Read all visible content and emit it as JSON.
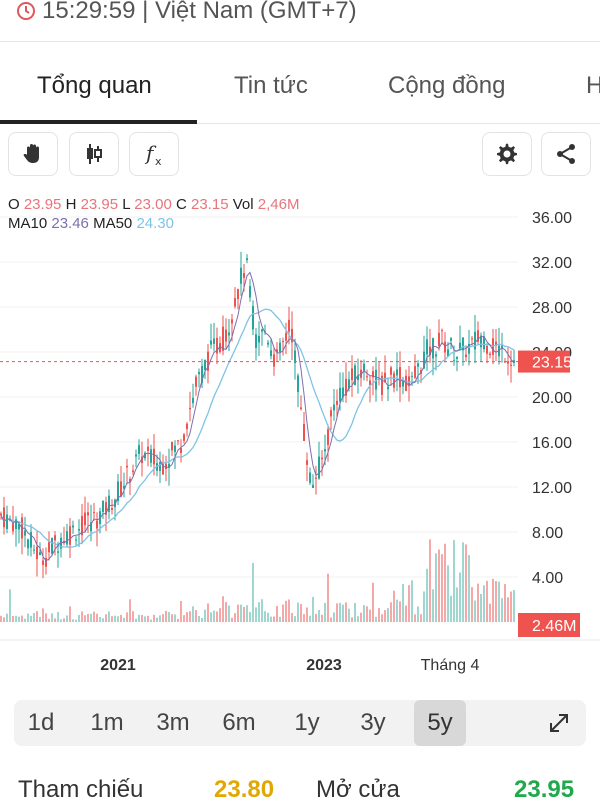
{
  "header": {
    "time_text": "15:29:59 | Việt Nam (GMT+7)"
  },
  "tabs": [
    {
      "label": "Tổng quan",
      "active": true
    },
    {
      "label": "Tin tức",
      "active": false
    },
    {
      "label": "Cộng đồng",
      "active": false
    },
    {
      "label": "H",
      "active": false
    }
  ],
  "toolbar": {
    "icons": [
      "hand-icon",
      "candlestick-icon",
      "function-icon",
      "gear-icon",
      "share-icon"
    ]
  },
  "legend": {
    "o_label": "O",
    "o_value": "23.95",
    "h_label": "H",
    "h_value": "23.95",
    "l_label": "L",
    "l_value": "23.00",
    "c_label": "C",
    "c_value": "23.15",
    "vol_label": "Vol",
    "vol_value": "2,46M",
    "ma10_label": "MA10",
    "ma10_value": "23.46",
    "ma50_label": "MA50",
    "ma50_value": "24.30"
  },
  "chart_data": {
    "type": "candlestick",
    "y_ticks": [
      "36.00",
      "32.00",
      "28.00",
      "24.00",
      "20.00",
      "16.00",
      "12.00",
      "8.00",
      "4.00"
    ],
    "ylim": [
      0,
      38
    ],
    "x_ticks": [
      "2021",
      "2023",
      "Tháng 4"
    ],
    "current_price": "23.15",
    "current_volume": "2.46M",
    "price_path": [
      [
        0,
        9.5
      ],
      [
        20,
        8.5
      ],
      [
        40,
        5.5
      ],
      [
        60,
        7.5
      ],
      [
        80,
        8.5
      ],
      [
        100,
        9.5
      ],
      [
        120,
        12.0
      ],
      [
        140,
        15.0
      ],
      [
        160,
        14.0
      ],
      [
        180,
        16.0
      ],
      [
        195,
        21.0
      ],
      [
        210,
        24.0
      ],
      [
        225,
        25.5
      ],
      [
        235,
        29.0
      ],
      [
        245,
        32.0
      ],
      [
        255,
        25.0
      ],
      [
        265,
        26.0
      ],
      [
        275,
        23.0
      ],
      [
        290,
        26.5
      ],
      [
        300,
        19.0
      ],
      [
        310,
        12.0
      ],
      [
        322,
        14.5
      ],
      [
        335,
        20.0
      ],
      [
        350,
        21.5
      ],
      [
        365,
        22.5
      ],
      [
        380,
        21.0
      ],
      [
        395,
        22.0
      ],
      [
        410,
        21.0
      ],
      [
        425,
        24.0
      ],
      [
        440,
        25.0
      ],
      [
        455,
        24.0
      ],
      [
        470,
        24.5
      ],
      [
        480,
        25.5
      ],
      [
        490,
        24.5
      ],
      [
        505,
        24.0
      ],
      [
        515,
        23.15
      ]
    ],
    "colors": {
      "up": "#26a69a",
      "down": "#ef5350",
      "ma10": "#7c6fae",
      "ma50": "#7ec3e6",
      "price_badge": "#ef5350"
    }
  },
  "periods": [
    {
      "label": "1d",
      "active": false
    },
    {
      "label": "1m",
      "active": false
    },
    {
      "label": "3m",
      "active": false
    },
    {
      "label": "6m",
      "active": false
    },
    {
      "label": "1y",
      "active": false
    },
    {
      "label": "3y",
      "active": false
    },
    {
      "label": "5y",
      "active": true
    }
  ],
  "stats": {
    "ref_label": "Tham chiếu",
    "ref_value": "23.80",
    "open_label": "Mở cửa",
    "open_value": "23.95",
    "ref_color": "#e0a800",
    "open_color": "#1ea94b"
  }
}
